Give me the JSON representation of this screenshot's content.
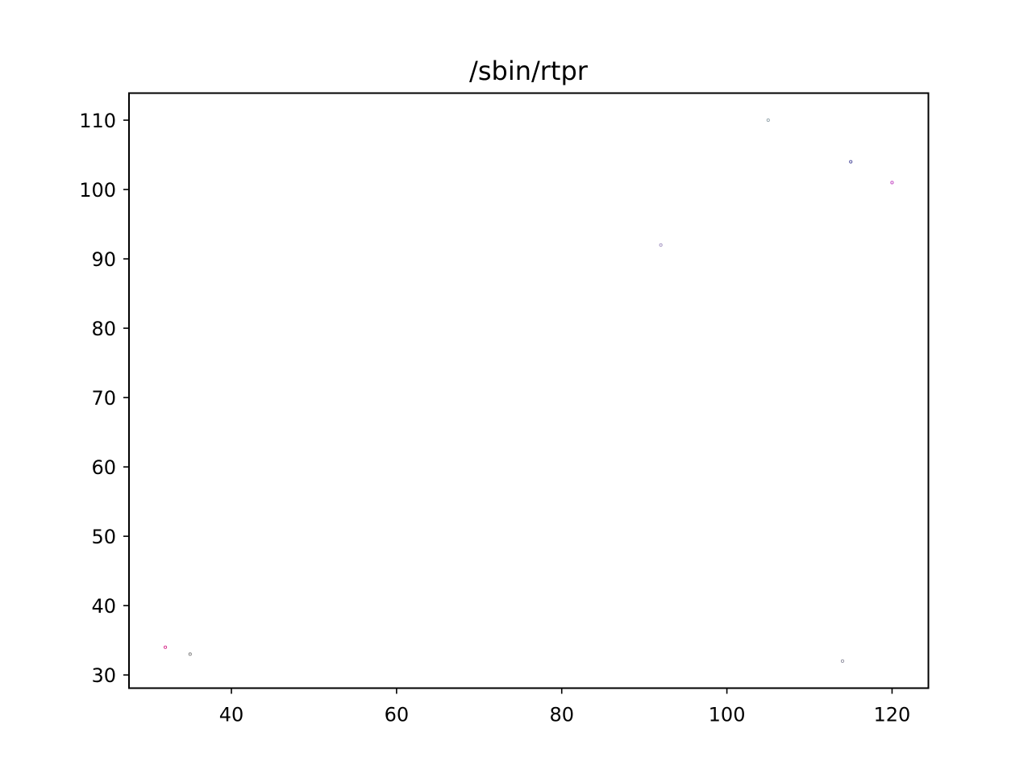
{
  "chart_data": {
    "type": "scatter",
    "title": "/sbin/rtpr",
    "xlabel": "",
    "ylabel": "",
    "xlim": [
      27.6,
      124.4
    ],
    "ylim": [
      28.1,
      113.9
    ],
    "xticks": [
      40,
      60,
      80,
      100,
      120
    ],
    "yticks": [
      30,
      40,
      50,
      60,
      70,
      80,
      90,
      100,
      110
    ],
    "grid": false,
    "points": [
      {
        "x": 32,
        "y": 34,
        "color": "#d62788"
      },
      {
        "x": 35,
        "y": 33,
        "color": "#7f7f7f"
      },
      {
        "x": 92,
        "y": 92,
        "color": "#9f8fbf"
      },
      {
        "x": 105,
        "y": 110,
        "color": "#8fa0a8"
      },
      {
        "x": 114,
        "y": 32,
        "color": "#8f8f9f"
      },
      {
        "x": 115,
        "y": 104,
        "color": "#4a4a9a"
      },
      {
        "x": 120,
        "y": 101,
        "color": "#c040c0"
      }
    ]
  }
}
